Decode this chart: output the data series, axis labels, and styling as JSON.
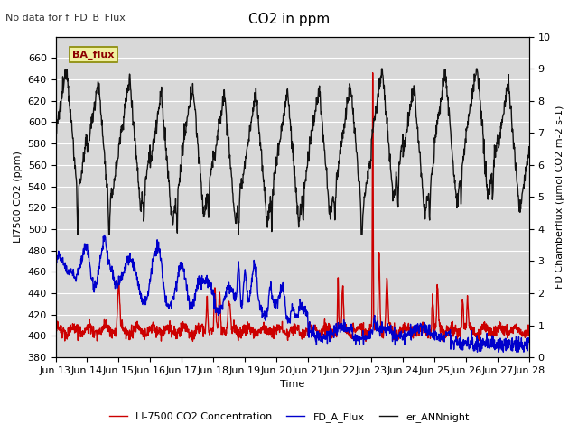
{
  "title": "CO2 in ppm",
  "top_left_text": "No data for f_FD_B_Flux",
  "ba_flux_label": "BA_flux",
  "xlabel": "Time",
  "ylabel_left": "LI7500 CO2 (ppm)",
  "ylabel_right": "FD Chamberflux (μmol CO2 m-2 s-1)",
  "ylim_left": [
    380,
    680
  ],
  "ylim_right": [
    0.0,
    10.0
  ],
  "yticks_left": [
    380,
    400,
    420,
    440,
    460,
    480,
    500,
    520,
    540,
    560,
    580,
    600,
    620,
    640,
    660
  ],
  "yticks_right": [
    0.0,
    1.0,
    2.0,
    3.0,
    4.0,
    5.0,
    6.0,
    7.0,
    8.0,
    9.0,
    10.0
  ],
  "xtick_labels": [
    "Jun 13",
    "Jun 14",
    "Jun 15",
    "Jun 16",
    "Jun 17",
    "Jun 18",
    "Jun 19",
    "Jun 20",
    "Jun 21",
    "Jun 22",
    "Jun 23",
    "Jun 24",
    "Jun 25",
    "Jun 26",
    "Jun 27",
    "Jun 28"
  ],
  "legend_entries": [
    {
      "label": "LI-7500 CO2 Concentration",
      "color": "#cc0000",
      "lw": 1.0
    },
    {
      "label": "FD_A_Flux",
      "color": "#0000cc",
      "lw": 1.0
    },
    {
      "label": "er_ANNnight",
      "color": "#111111",
      "lw": 1.0
    }
  ],
  "background_color": "#d8d8d8",
  "grid_color": "#ffffff",
  "title_fontsize": 11,
  "label_fontsize": 8,
  "tick_fontsize": 8
}
